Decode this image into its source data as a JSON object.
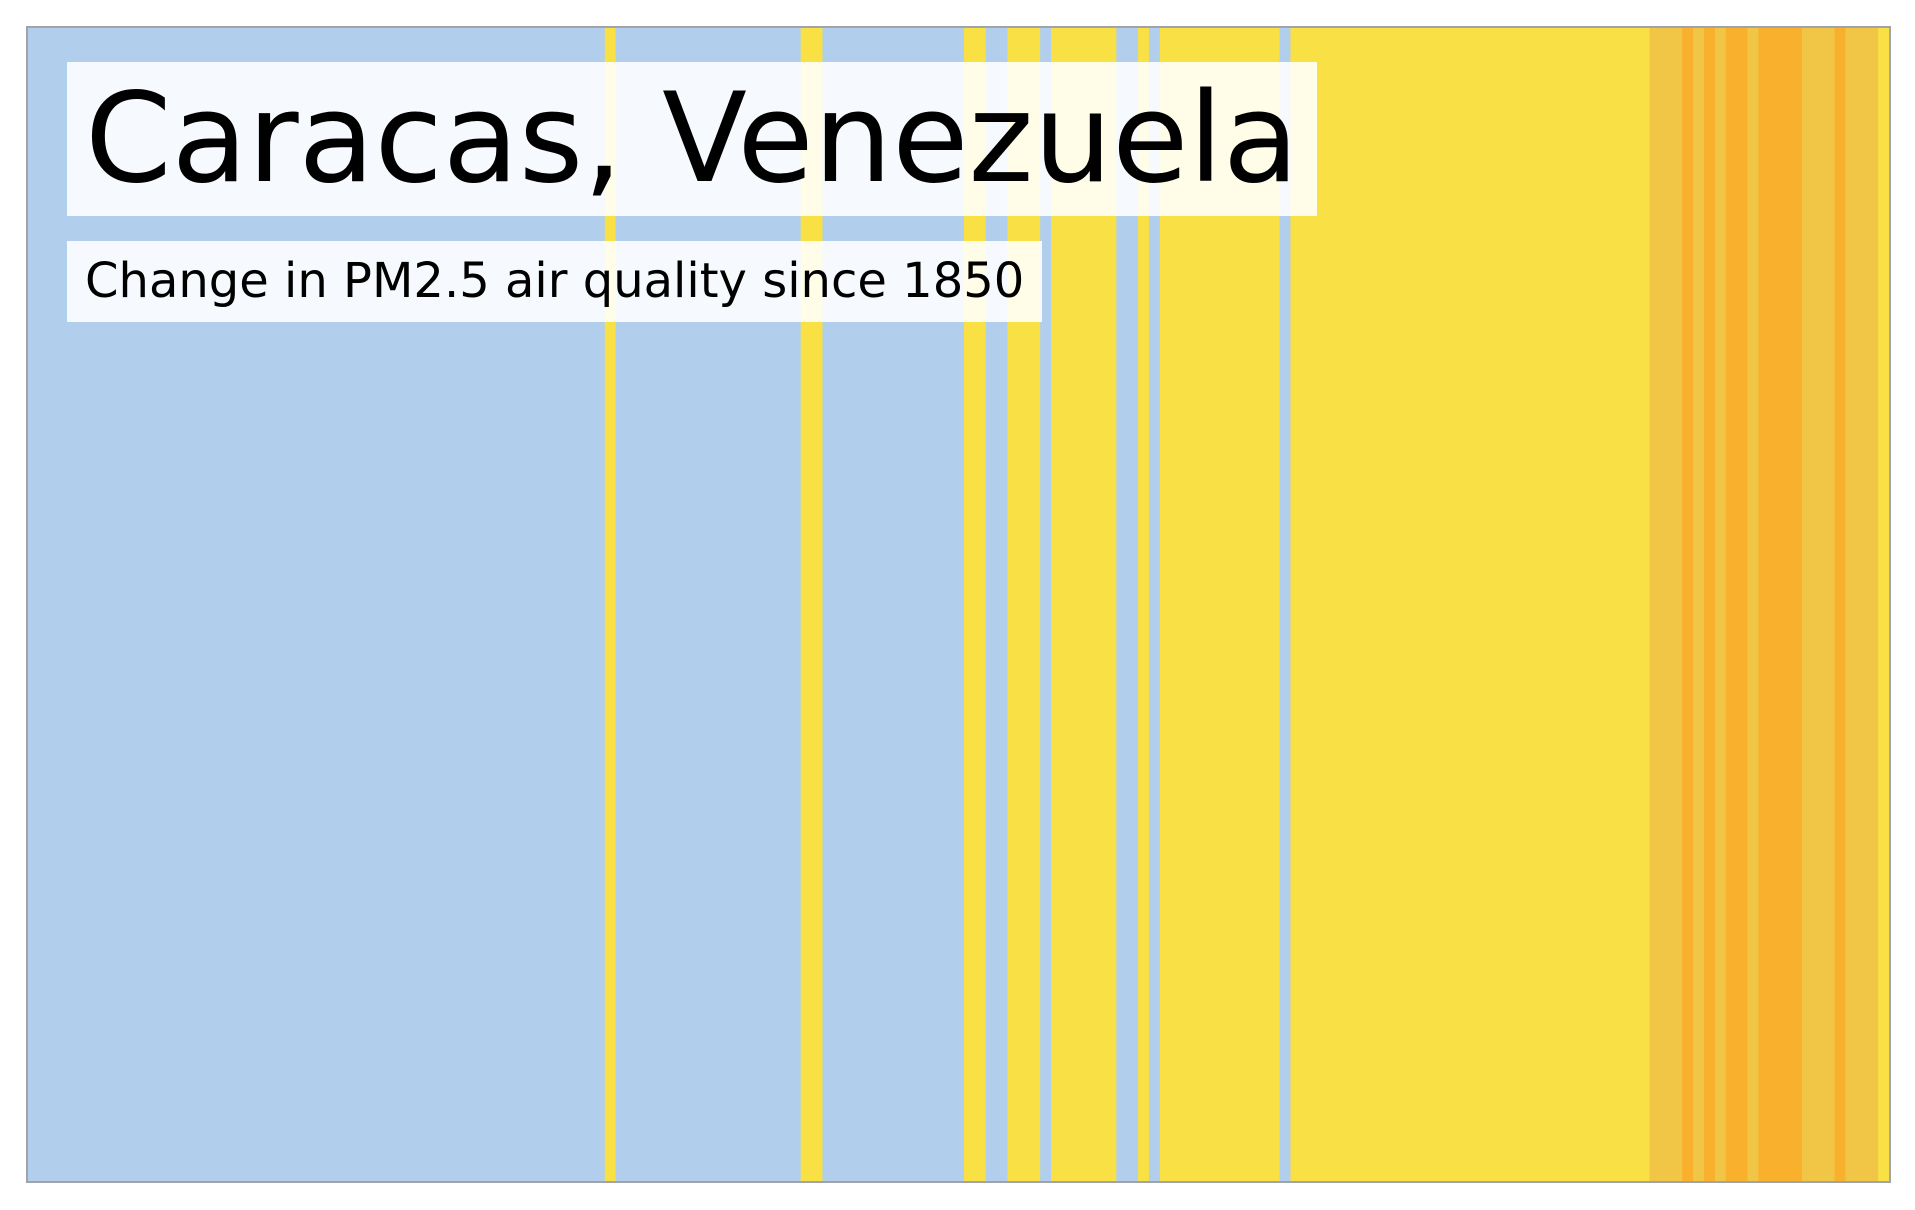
{
  "title": "Caracas, Venezuela",
  "subtitle": "Change in PM2.5 air quality since 1850",
  "colors": {
    "frame": "#a0a4a8",
    "light_blue": "#b1cfec",
    "yellow": "#f8e045",
    "gold": "#f1c545",
    "orange": "#f9b02d"
  },
  "chart_data": {
    "type": "heatmap",
    "title": "Caracas, Venezuela",
    "subtitle": "Change in PM2.5 air quality since 1850",
    "legend": "none",
    "grid": false,
    "x_start": 1850,
    "x_end": 2021,
    "categories": [
      "light_blue",
      "yellow",
      "gold",
      "orange"
    ],
    "stripes": [
      {
        "start": 1850,
        "end": 1903,
        "category": "light_blue"
      },
      {
        "start": 1903,
        "end": 1904,
        "category": "yellow"
      },
      {
        "start": 1904,
        "end": 1921,
        "category": "light_blue"
      },
      {
        "start": 1921,
        "end": 1923,
        "category": "yellow"
      },
      {
        "start": 1923,
        "end": 1936,
        "category": "light_blue"
      },
      {
        "start": 1936,
        "end": 1938,
        "category": "yellow"
      },
      {
        "start": 1938,
        "end": 1940,
        "category": "light_blue"
      },
      {
        "start": 1940,
        "end": 1943,
        "category": "yellow"
      },
      {
        "start": 1943,
        "end": 1944,
        "category": "light_blue"
      },
      {
        "start": 1944,
        "end": 1950,
        "category": "yellow"
      },
      {
        "start": 1950,
        "end": 1952,
        "category": "light_blue"
      },
      {
        "start": 1952,
        "end": 1953,
        "category": "yellow"
      },
      {
        "start": 1953,
        "end": 1954,
        "category": "light_blue"
      },
      {
        "start": 1954,
        "end": 1965,
        "category": "yellow"
      },
      {
        "start": 1965,
        "end": 1966,
        "category": "light_blue"
      },
      {
        "start": 1966,
        "end": 1999,
        "category": "yellow"
      },
      {
        "start": 1999,
        "end": 2002,
        "category": "gold"
      },
      {
        "start": 2002,
        "end": 2003,
        "category": "orange"
      },
      {
        "start": 2003,
        "end": 2004,
        "category": "gold"
      },
      {
        "start": 2004,
        "end": 2005,
        "category": "orange"
      },
      {
        "start": 2005,
        "end": 2006,
        "category": "gold"
      },
      {
        "start": 2006,
        "end": 2008,
        "category": "orange"
      },
      {
        "start": 2008,
        "end": 2009,
        "category": "gold"
      },
      {
        "start": 2009,
        "end": 2013,
        "category": "orange"
      },
      {
        "start": 2013,
        "end": 2016,
        "category": "gold"
      },
      {
        "start": 2016,
        "end": 2017,
        "category": "orange"
      },
      {
        "start": 2017,
        "end": 2020,
        "category": "gold"
      },
      {
        "start": 2020,
        "end": 2021,
        "category": "yellow"
      }
    ]
  }
}
